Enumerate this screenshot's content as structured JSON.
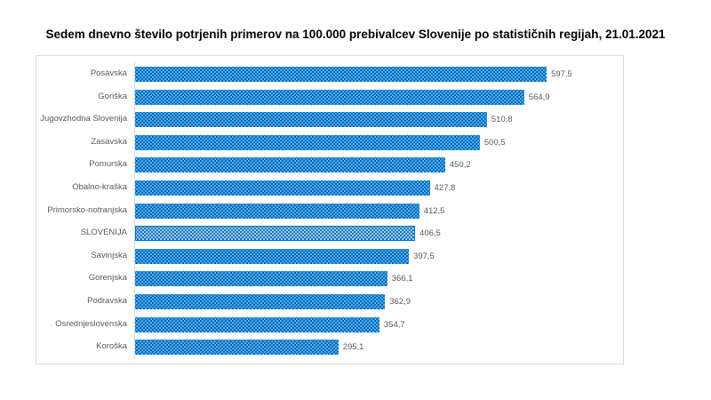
{
  "chart_data": {
    "type": "bar",
    "orientation": "horizontal",
    "title": "Sedem dnevno število potrjenih primerov na 100.000  prebivalcev Slovenije po statističnih regijah, 21.01.2021",
    "categories": [
      "Posavska",
      "Goriška",
      "Jugovzhodna Slovenija",
      "Zasavska",
      "Pomurska",
      "Obalno-kraška",
      "Primorsko-notranjska",
      "SLOVENIJA",
      "Savinjska",
      "Gorenjska",
      "Podravska",
      "Osrednjeslovenska",
      "Koroška"
    ],
    "values": [
      597.5,
      564.9,
      510.8,
      500.5,
      450.2,
      427.8,
      412.5,
      406.5,
      397.5,
      366.1,
      362.9,
      354.7,
      295.1
    ],
    "labels": [
      "597,5",
      "564,9",
      "510,8",
      "500,5",
      "450,2",
      "427,8",
      "412,5",
      "406,5",
      "397,5",
      "366,1",
      "362,9",
      "354,7",
      "295,1"
    ],
    "highlight": "SLOVENIJA",
    "colors": {
      "bar": "#0070c0",
      "dots": "#5aa9e6"
    },
    "xlabel": "",
    "ylabel": "",
    "xlim": [
      0,
      700
    ],
    "grid": false,
    "legend": "none"
  }
}
